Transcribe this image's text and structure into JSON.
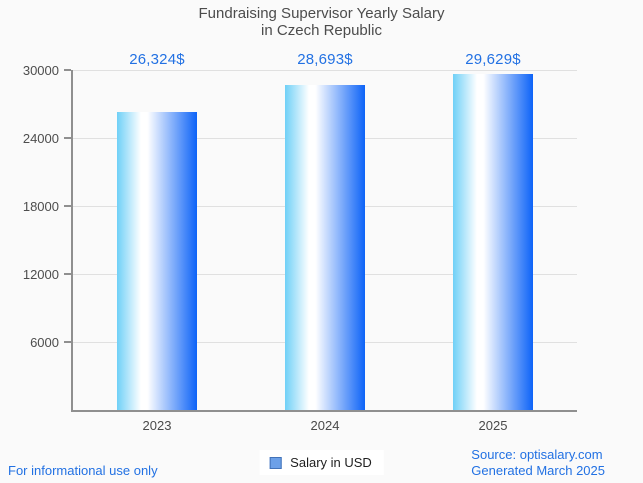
{
  "title": {
    "line1": "Fundraising Supervisor Yearly Salary",
    "line2": "in Czech Republic"
  },
  "chart_data": {
    "type": "bar",
    "categories": [
      "2023",
      "2024",
      "2025"
    ],
    "values": [
      26324,
      28693,
      29629
    ],
    "value_labels": [
      "26,324$",
      "28,693$",
      "29,629$"
    ],
    "series_name": "Salary in USD",
    "title": "Fundraising Supervisor Yearly Salary in Czech Republic",
    "xlabel": "",
    "ylabel": "",
    "ylim": [
      0,
      30000
    ],
    "yticks": [
      6000,
      12000,
      18000,
      24000,
      30000
    ],
    "grid": true,
    "legend_position": "bottom-center"
  },
  "legend": {
    "label": "Salary in USD"
  },
  "footer": {
    "disclaimer": "For informational use only",
    "source": "Source: optisalary.com",
    "generated": "Generated March 2025"
  },
  "colors": {
    "accent_blue": "#2271e3",
    "bar_gradient_left": "#6fd0f7",
    "bar_gradient_mid": "#ffffff",
    "bar_gradient_right": "#0d63f7",
    "legend_fill": "#6ca0e8",
    "legend_border": "#4272b8",
    "gridline": "#e0e0e0",
    "axis": "#8f8f8f",
    "title_text": "#4c4c4c",
    "tick_text": "#4d4d4d",
    "background": "#fafafa"
  }
}
